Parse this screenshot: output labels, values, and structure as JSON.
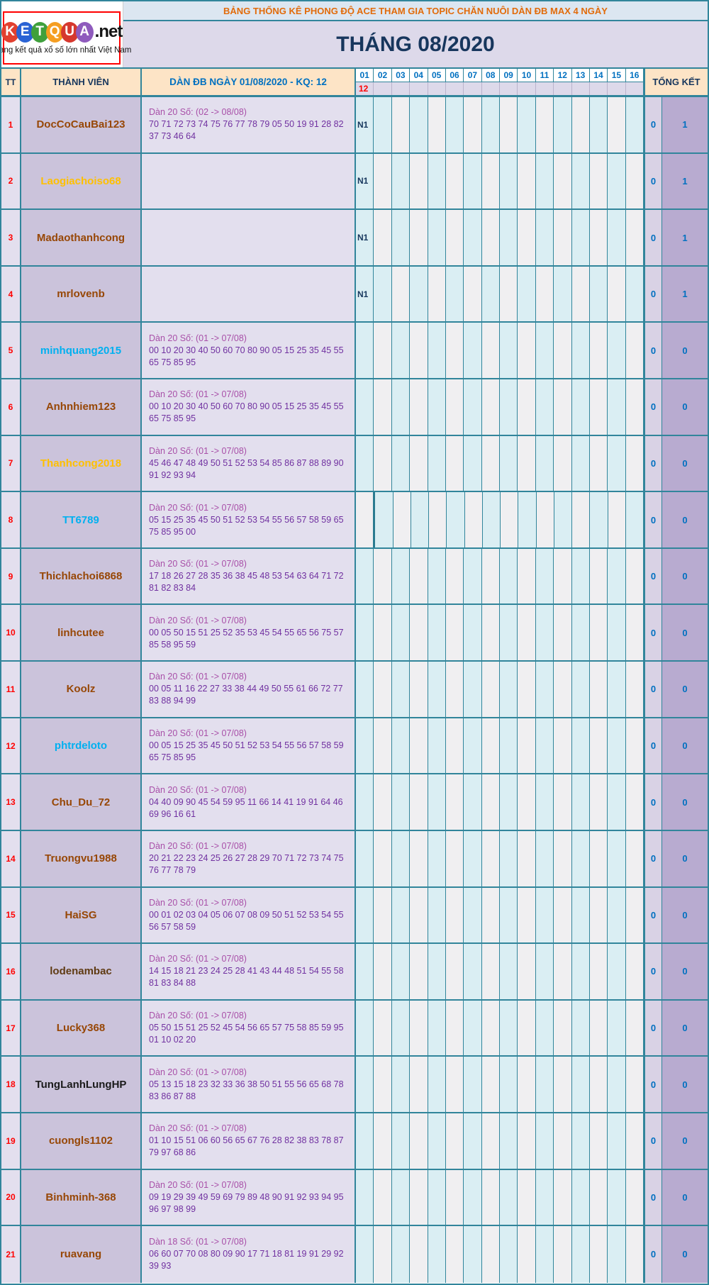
{
  "logo": {
    "brand_letters": [
      "K",
      "E",
      "T",
      "Q",
      "U",
      "A"
    ],
    "brand_letter_colors": [
      "#e2402f",
      "#2a63d4",
      "#3fa03c",
      "#f59e22",
      "#d6382e",
      "#8f5bbd"
    ],
    "brand_suffix": ".net",
    "tagline": "Trang kết quả xổ số lớn nhất Việt Nam"
  },
  "header": {
    "title": "BẢNG THỐNG KÊ PHONG ĐỘ ACE THAM GIA TOPIC CHĂN NUÔI DÀN ĐB MAX 4 NGÀY",
    "title_color": "#e26b0a",
    "month": "THÁNG 08/2020"
  },
  "table": {
    "col_tt": "TT",
    "col_member": "THÀNH VIÊN",
    "col_entry": "DÀN ĐB NGÀY 01/08/2020 - KQ: 12",
    "col_total": "TỔNG KẾT",
    "day_labels": [
      "01",
      "02",
      "03",
      "04",
      "05",
      "06",
      "07",
      "08",
      "09",
      "10",
      "11",
      "12",
      "13",
      "14",
      "15",
      "16"
    ],
    "day1_result": "12",
    "accent_colors": {
      "grid_teal": "#31859b",
      "day_cell_cyan": "#daeef3",
      "day_cell_white": "#f0eff1",
      "member_bg": "#cbc3db",
      "total_score_bg": "#b8abd0"
    },
    "rows": [
      {
        "tt": "1",
        "name": "DocCoCauBai123",
        "name_color": "#974706",
        "entry_label": "Dàn 20 Số: (02 -> 08/08)",
        "entry_numbers": "70 71 72 73 74 75 76 77 78 79 05 50 19 91 28 82 37 73 46 64",
        "day1": "N1",
        "total1": "0",
        "total2": "1"
      },
      {
        "tt": "2",
        "name": "Laogiachoiso68",
        "name_color": "#ffc000",
        "entry_label": "",
        "entry_numbers": "",
        "day1": "N1",
        "total1": "0",
        "total2": "1"
      },
      {
        "tt": "3",
        "name": "Madaothanhcong",
        "name_color": "#974706",
        "entry_label": "",
        "entry_numbers": "",
        "day1": "N1",
        "total1": "0",
        "total2": "1"
      },
      {
        "tt": "4",
        "name": "mrlovenb",
        "name_color": "#974706",
        "entry_label": "",
        "entry_numbers": "",
        "day1": "N1",
        "total1": "0",
        "total2": "1"
      },
      {
        "tt": "5",
        "name": "minhquang2015",
        "name_color": "#00b0f0",
        "entry_label": "Dàn 20 Số: (01 -> 07/08)",
        "entry_numbers": "00 10 20 30 40 50 60 70 80 90 05 15 25 35 45 55 65 75 85 95",
        "day1": "",
        "total1": "0",
        "total2": "0"
      },
      {
        "tt": "6",
        "name": "Anhnhiem123",
        "name_color": "#974706",
        "entry_label": "Dàn 20 Số: (01 -> 07/08)",
        "entry_numbers": "00 10 20 30 40 50 60 70 80 90 05 15 25 35 45 55 65 75 85 95",
        "day1": "",
        "total1": "0",
        "total2": "0"
      },
      {
        "tt": "7",
        "name": "Thanhcong2018",
        "name_color": "#ffc000",
        "entry_label": "Dàn 20 Số: (01 -> 07/08)",
        "entry_numbers": "45 46 47 48 49 50 51 52 53 54 85 86 87 88 89 90 91 92 93 94",
        "day1": "",
        "total1": "0",
        "total2": "0"
      },
      {
        "tt": "8",
        "name": "TT6789",
        "name_color": "#00b0f0",
        "entry_label": "Dàn 20 Số: (01 -> 07/08)",
        "entry_numbers": "05 15 25 35 45 50 51 52 53 54 55 56 57 58 59 65 75 85 95 00",
        "day1": "",
        "total1": "0",
        "total2": "0"
      },
      {
        "tt": "9",
        "name": "Thichlachoi6868",
        "name_color": "#974706",
        "entry_label": "Dàn 20 Số: (01 -> 07/08)",
        "entry_numbers": "17 18 26 27 28 35 36 38 45 48 53 54 63 64 71 72 81 82 83 84",
        "day1": "",
        "total1": "0",
        "total2": "0"
      },
      {
        "tt": "10",
        "name": "linhcutee",
        "name_color": "#974706",
        "entry_label": "Dàn 20 Số: (01 -> 07/08)",
        "entry_numbers": "00 05 50 15 51 25 52 35 53 45 54 55 65 56 75 57 85 58 95 59",
        "day1": "",
        "total1": "0",
        "total2": "0"
      },
      {
        "tt": "11",
        "name": "Koolz",
        "name_color": "#974706",
        "entry_label": "Dàn 20 Số: (01 -> 07/08)",
        "entry_numbers": "00 05 11 16 22 27 33 38 44 49 50 55 61 66 72 77 83 88 94 99",
        "day1": "",
        "total1": "0",
        "total2": "0"
      },
      {
        "tt": "12",
        "name": "phtrdeloto",
        "name_color": "#00b0f0",
        "entry_label": "Dàn 20 Số: (01 -> 07/08)",
        "entry_numbers": "00 05 15 25 35 45 50 51 52 53 54 55 56 57 58 59 65 75 85 95",
        "day1": "",
        "total1": "0",
        "total2": "0"
      },
      {
        "tt": "13",
        "name": "Chu_Du_72",
        "name_color": "#974706",
        "entry_label": "Dàn 20 Số: (01 -> 07/08)",
        "entry_numbers": "04 40 09 90 45 54 59 95 11 66 14 41 19 91 64 46 69 96 16 61",
        "day1": "",
        "total1": "0",
        "total2": "0"
      },
      {
        "tt": "14",
        "name": "Truongvu1988",
        "name_color": "#974706",
        "entry_label": "Dàn 20 Số: (01 -> 07/08)",
        "entry_numbers": "20 21 22 23 24 25 26 27 28 29 70 71 72 73 74 75 76 77 78 79",
        "day1": "",
        "total1": "0",
        "total2": "0"
      },
      {
        "tt": "15",
        "name": "HaiSG",
        "name_color": "#974706",
        "entry_label": "Dàn 20 Số: (01 -> 07/08)",
        "entry_numbers": "00 01 02 03 04 05 06 07 08 09 50 51 52 53 54 55 56 57 58 59",
        "day1": "",
        "total1": "0",
        "total2": "0"
      },
      {
        "tt": "16",
        "name": "lodenambac",
        "name_color": "#5f3a12",
        "entry_label": "Dàn 20 Số: (01 -> 07/08)",
        "entry_numbers": "14 15 18 21 23 24 25 28 41 43 44 48 51 54 55 58 81 83 84 88",
        "day1": "",
        "total1": "0",
        "total2": "0"
      },
      {
        "tt": "17",
        "name": "Lucky368",
        "name_color": "#974706",
        "entry_label": "Dàn 20 Số: (01 -> 07/08)",
        "entry_numbers": "05 50 15 51 25 52 45 54 56 65 57 75 58 85 59 95 01 10 02 20",
        "day1": "",
        "total1": "0",
        "total2": "0"
      },
      {
        "tt": "18",
        "name": "TungLanhLungHP",
        "name_color": "#1a1a1a",
        "entry_label": "Dàn 20 Số: (01 -> 07/08)",
        "entry_numbers": "05 13 15 18 23 32 33 36 38 50 51 55 56 65 68 78 83 86 87 88",
        "day1": "",
        "total1": "0",
        "total2": "0"
      },
      {
        "tt": "19",
        "name": "cuongls1102",
        "name_color": "#974706",
        "entry_label": "Dàn 20 Số: (01 -> 07/08)",
        "entry_numbers": "01 10 15 51 06 60 56 65 67 76 28 82 38 83 78 87 79 97 68 86",
        "day1": "",
        "total1": "0",
        "total2": "0"
      },
      {
        "tt": "20",
        "name": "Binhminh-368",
        "name_color": "#974706",
        "entry_label": "Dàn 20 Số: (01 -> 07/08)",
        "entry_numbers": "09 19 29 39 49 59 69 79 89 48 90 91 92 93 94 95 96 97 98 99",
        "day1": "",
        "total1": "0",
        "total2": "0"
      },
      {
        "tt": "21",
        "name": "ruavang",
        "name_color": "#974706",
        "entry_label": "Dàn 18 Số: (01 -> 07/08)",
        "entry_numbers": "06 60 07 70 08 80 09 90 17 71 18 81 19 91 29 92 39 93",
        "day1": "",
        "total1": "0",
        "total2": "0"
      }
    ]
  }
}
